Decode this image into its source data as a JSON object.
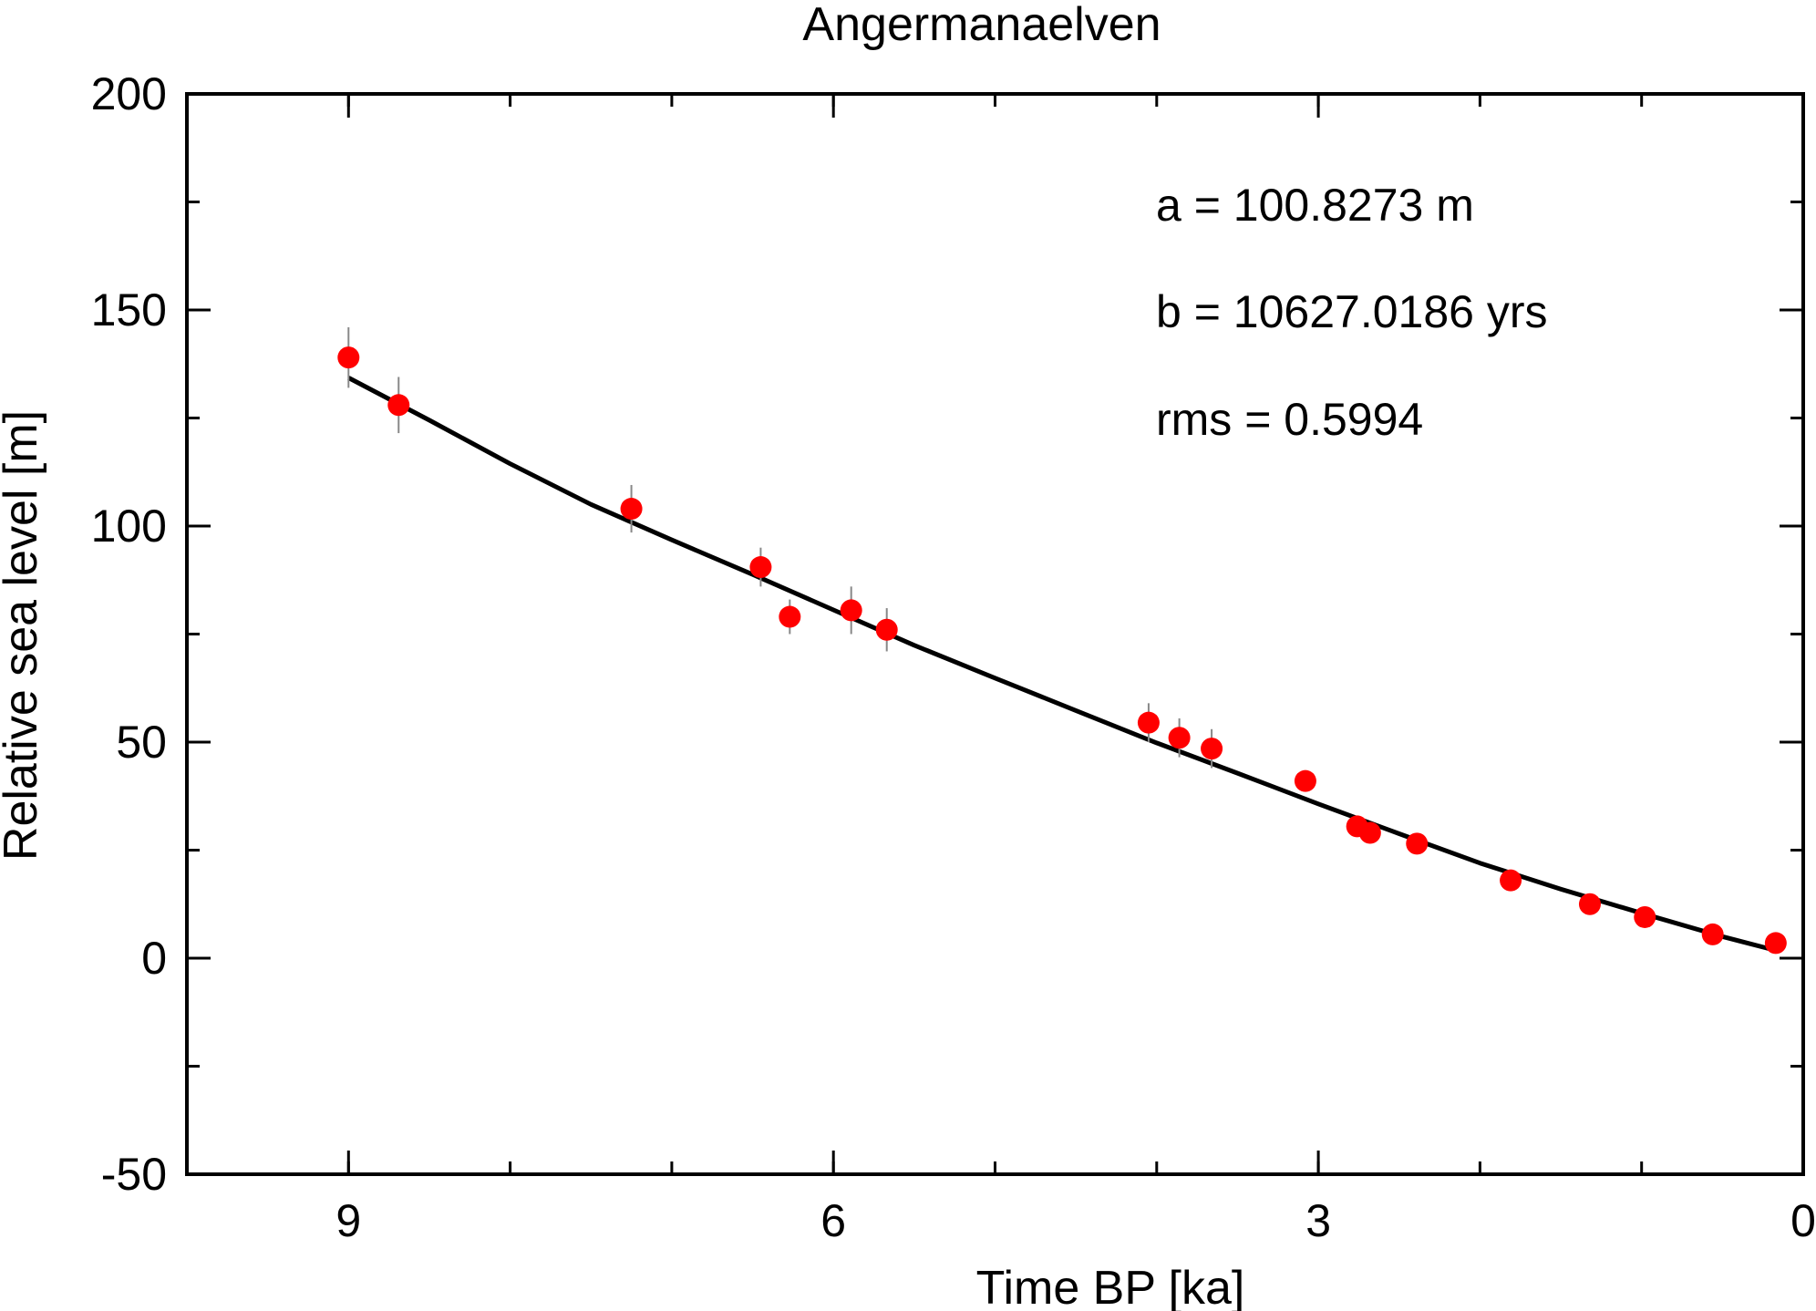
{
  "chart_data": {
    "type": "scatter",
    "title": "Angermanaelven",
    "xlabel": "Time BP [ka]",
    "ylabel": "Relative sea level [m]",
    "xlim": [
      10,
      0
    ],
    "ylim": [
      -50,
      200
    ],
    "x_reversed": true,
    "grid": false,
    "x_ticks": [
      9,
      6,
      3,
      0
    ],
    "x_minor_step": 1,
    "y_ticks": [
      -50,
      0,
      50,
      100,
      150,
      200
    ],
    "y_minor_step": 25,
    "annotations": [
      "a = 100.8273 m",
      "b = 10627.0186 yrs",
      "rms = 0.5994"
    ],
    "colors": {
      "points": "#ff0000",
      "errorbars": "#888888",
      "fit_line": "#000000",
      "axes": "#000000"
    },
    "series": [
      {
        "kind": "points_with_errorbars",
        "x": [
          9.0,
          8.69,
          7.25,
          6.45,
          6.27,
          5.89,
          5.67,
          4.05,
          3.86,
          3.66,
          3.08,
          2.76,
          2.68,
          2.39,
          1.81,
          1.32,
          0.98,
          0.56,
          0.17
        ],
        "y": [
          139,
          128,
          104,
          90.5,
          79,
          80.5,
          76,
          54.5,
          51,
          48.5,
          41,
          30.5,
          29,
          26.5,
          18,
          12.5,
          9.5,
          5.5,
          3.5
        ],
        "err": [
          7,
          6.5,
          5.5,
          4.5,
          4,
          5.5,
          5,
          4.5,
          4.5,
          4.5,
          1.5,
          1.5,
          1.5,
          1.5,
          1.5,
          1.5,
          1.5,
          1.5,
          1.5
        ]
      },
      {
        "kind": "fit_line",
        "x": [
          9.0,
          8.5,
          8.0,
          7.5,
          7.0,
          6.5,
          6.0,
          5.5,
          5.0,
          4.5,
          4.0,
          3.5,
          3.0,
          2.5,
          2.0,
          1.5,
          1.0,
          0.5,
          0.17
        ],
        "y": [
          134.3,
          124.5,
          114.4,
          105.0,
          96.8,
          88.8,
          80.6,
          72.4,
          64.8,
          57.3,
          49.8,
          42.8,
          35.7,
          28.8,
          22.0,
          16.0,
          10.4,
          5.0,
          1.8
        ]
      }
    ]
  }
}
